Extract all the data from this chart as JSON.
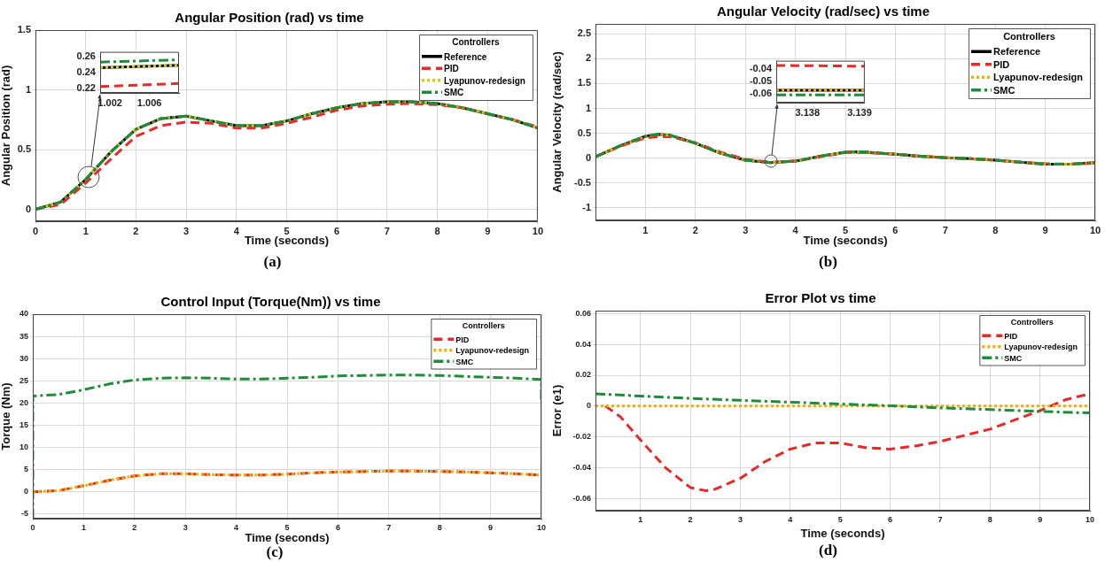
{
  "chart_data": [
    {
      "type": "line",
      "title": "Angular Position (rad) vs time",
      "xlabel": "Time (seconds)",
      "ylabel": "Angular Position (rad)",
      "legend_title": "Controllers",
      "legend": "top right",
      "grid": true,
      "annotations": [
        "(a)"
      ],
      "xlim": [
        0,
        10
      ],
      "xticks": [
        0,
        1,
        2,
        3,
        4,
        5,
        6,
        7,
        8,
        9,
        10
      ],
      "ylim": [
        -0.1,
        1.5
      ],
      "yticks": [
        0,
        0.5,
        1,
        1.5
      ],
      "x": [
        0,
        0.5,
        1,
        1.5,
        2,
        2.5,
        3,
        3.5,
        4,
        4.5,
        5,
        5.5,
        6,
        6.5,
        7,
        7.5,
        8,
        8.5,
        9,
        9.5,
        10
      ],
      "series": [
        {
          "name": "Reference",
          "color": "#000000",
          "line_style": "solid",
          "values": [
            0,
            0.06,
            0.25,
            0.48,
            0.67,
            0.76,
            0.78,
            0.74,
            0.7,
            0.7,
            0.74,
            0.8,
            0.85,
            0.885,
            0.9,
            0.9,
            0.885,
            0.85,
            0.8,
            0.75,
            0.68
          ]
        },
        {
          "name": "PID",
          "color": "#e42a2a",
          "line_style": "dashed",
          "values": [
            0,
            0.04,
            0.22,
            0.42,
            0.61,
            0.7,
            0.73,
            0.72,
            0.68,
            0.68,
            0.72,
            0.77,
            0.83,
            0.865,
            0.88,
            0.885,
            0.875,
            0.85,
            0.8,
            0.75,
            0.69
          ]
        },
        {
          "name": "Lyapunov-redesign",
          "color": "#d4cc10",
          "line_style": "dotted",
          "values": [
            0,
            0.06,
            0.25,
            0.48,
            0.67,
            0.76,
            0.78,
            0.74,
            0.7,
            0.7,
            0.74,
            0.8,
            0.85,
            0.885,
            0.9,
            0.9,
            0.885,
            0.85,
            0.8,
            0.75,
            0.68
          ]
        },
        {
          "name": "SMC",
          "color": "#1f8b3b",
          "line_style": "dashdot",
          "values": [
            0,
            0.06,
            0.25,
            0.48,
            0.67,
            0.76,
            0.78,
            0.74,
            0.7,
            0.7,
            0.74,
            0.8,
            0.85,
            0.885,
            0.9,
            0.9,
            0.885,
            0.85,
            0.8,
            0.75,
            0.68
          ]
        }
      ]
    },
    {
      "type": "line",
      "grid": true,
      "xlim": [
        1.001,
        1.009
      ],
      "xticks": [
        1.002,
        1.006
      ],
      "ylim": [
        0.214,
        0.266
      ],
      "yticks": [
        0.22,
        0.24,
        0.26
      ],
      "x": [
        1.001,
        1.009
      ],
      "series": [
        {
          "color": "#000000",
          "line_style": "solid",
          "values": [
            0.246,
            0.249
          ]
        },
        {
          "color": "#e42a2a",
          "line_style": "dashed",
          "values": [
            0.222,
            0.226
          ]
        },
        {
          "color": "#d4cc10",
          "line_style": "dotted",
          "values": [
            0.246,
            0.249
          ]
        },
        {
          "color": "#1f8b3b",
          "line_style": "dashdot",
          "values": [
            0.253,
            0.256
          ]
        }
      ]
    },
    {
      "type": "line",
      "title": "Angular Velocity (rad/sec) vs time",
      "xlabel": "Time (seconds)",
      "ylabel": "Angular Velocity (rad/sec)",
      "legend_title": "Controllers",
      "legend": "top right",
      "grid": true,
      "annotations": [
        "(b)"
      ],
      "xlim": [
        0,
        10
      ],
      "xticks": [
        1,
        2,
        3,
        4,
        5,
        6,
        7,
        8,
        9,
        10
      ],
      "ylim": [
        -1.25,
        2.7
      ],
      "yticks": [
        -1,
        -0.5,
        0,
        0.5,
        1,
        1.5,
        2,
        2.5
      ],
      "x": [
        0,
        0.5,
        1,
        1.25,
        1.5,
        2,
        2.5,
        3,
        3.5,
        4,
        4.5,
        5,
        5.3,
        6,
        6.5,
        7,
        7.5,
        8,
        8.5,
        9,
        9.5,
        10
      ],
      "series": [
        {
          "name": "Reference",
          "color": "#000000",
          "line_style": "solid",
          "values": [
            0.03,
            0.25,
            0.44,
            0.48,
            0.46,
            0.3,
            0.1,
            -0.04,
            -0.09,
            -0.06,
            0.04,
            0.12,
            0.13,
            0.08,
            0.04,
            0.01,
            -0.01,
            -0.04,
            -0.08,
            -0.12,
            -0.12,
            -0.09
          ]
        },
        {
          "name": "PID",
          "color": "#e42a2a",
          "line_style": "dashed",
          "values": [
            0.03,
            0.24,
            0.41,
            0.43,
            0.43,
            0.31,
            0.12,
            -0.02,
            -0.08,
            -0.06,
            0.03,
            0.11,
            0.12,
            0.08,
            0.04,
            0.01,
            -0.01,
            -0.04,
            -0.08,
            -0.11,
            -0.12,
            -0.1
          ]
        },
        {
          "name": "Lyapunov-redesign",
          "color": "#f0b000",
          "line_style": "dotted",
          "values": [
            0.03,
            0.25,
            0.44,
            0.48,
            0.46,
            0.3,
            0.1,
            -0.04,
            -0.09,
            -0.06,
            0.04,
            0.12,
            0.13,
            0.08,
            0.04,
            0.01,
            -0.01,
            -0.04,
            -0.08,
            -0.12,
            -0.12,
            -0.09
          ]
        },
        {
          "name": "SMC",
          "color": "#1f8b3b",
          "line_style": "dashdot",
          "values": [
            0.03,
            0.25,
            0.44,
            0.48,
            0.46,
            0.3,
            0.1,
            -0.04,
            -0.09,
            -0.06,
            0.04,
            0.12,
            0.13,
            0.08,
            0.04,
            0.01,
            -0.01,
            -0.04,
            -0.08,
            -0.12,
            -0.12,
            -0.09
          ]
        }
      ]
    },
    {
      "type": "line",
      "grid": true,
      "xlim": [
        3.1374,
        3.1391
      ],
      "xticks": [
        3.138,
        3.139
      ],
      "ylim": [
        -0.067,
        -0.033
      ],
      "yticks": [
        -0.06,
        -0.05,
        -0.04
      ],
      "x": [
        3.1374,
        3.1391
      ],
      "series": [
        {
          "color": "#000000",
          "line_style": "solid",
          "values": [
            -0.057,
            -0.057
          ]
        },
        {
          "color": "#e42a2a",
          "line_style": "dashed",
          "values": [
            -0.0368,
            -0.0375
          ]
        },
        {
          "color": "#f0b000",
          "line_style": "dotted",
          "values": [
            -0.057,
            -0.057
          ]
        },
        {
          "color": "#1f8b3b",
          "line_style": "dashdot",
          "values": [
            -0.0608,
            -0.0608
          ]
        }
      ]
    },
    {
      "type": "line",
      "title": "Control Input (Torque(Nm)) vs time",
      "xlabel": "Time (seconds)",
      "ylabel": "Torque (Nm)",
      "legend_title": "Controllers",
      "legend": "top right",
      "grid": true,
      "annotations": [
        "(c)"
      ],
      "xlim": [
        0,
        10
      ],
      "xticks": [
        0,
        1,
        2,
        3,
        4,
        5,
        6,
        7,
        8,
        9,
        10
      ],
      "ylim": [
        -6,
        40
      ],
      "yticks": [
        -5,
        0,
        5,
        10,
        15,
        20,
        25,
        30,
        35,
        40
      ],
      "x": [
        0,
        0.5,
        1,
        1.5,
        2,
        2.5,
        3,
        3.5,
        4,
        4.5,
        5,
        5.5,
        6,
        6.5,
        7,
        7.5,
        8,
        8.5,
        9,
        9.5,
        10
      ],
      "series": [
        {
          "name": "PID",
          "color": "#e42a2a",
          "line_style": "dashed",
          "values": [
            0,
            0.3,
            1.4,
            2.6,
            3.6,
            4.1,
            4.1,
            3.9,
            3.8,
            3.8,
            4,
            4.3,
            4.5,
            4.6,
            4.7,
            4.7,
            4.6,
            4.5,
            4.3,
            4.1,
            3.8
          ]
        },
        {
          "name": "Lyapunov-redesign",
          "color": "#f0b000",
          "line_style": "dotted",
          "values": [
            0,
            0.3,
            1.4,
            2.6,
            3.6,
            4.1,
            4.1,
            3.9,
            3.8,
            3.8,
            4,
            4.3,
            4.5,
            4.6,
            4.7,
            4.7,
            4.6,
            4.5,
            4.3,
            4.1,
            3.8
          ]
        },
        {
          "name": "SMC",
          "color": "#1f8b3b",
          "line_style": "dashdot",
          "x": [
            0,
            0,
            0.5,
            1,
            1.5,
            2,
            2.5,
            3,
            3.5,
            4,
            4.5,
            5,
            5.5,
            6,
            6.5,
            7,
            7.5,
            8,
            8.5,
            9,
            9.5,
            10,
            10
          ],
          "values": [
            -6,
            21.6,
            21.9,
            23,
            24.3,
            25.2,
            25.6,
            25.7,
            25.6,
            25.4,
            25.4,
            25.6,
            25.8,
            26.1,
            26.2,
            26.3,
            26.3,
            26.2,
            26,
            25.8,
            25.6,
            25.3,
            20
          ]
        }
      ]
    },
    {
      "type": "line",
      "title": "Error Plot vs time",
      "xlabel": "Time (seconds)",
      "ylabel": "Error (e1)",
      "legend_title": "Controllers",
      "legend": "top right",
      "grid": true,
      "annotations": [
        "(d)"
      ],
      "xlim": [
        0.1,
        10
      ],
      "xticks": [
        1,
        2,
        3,
        4,
        5,
        6,
        7,
        8,
        9,
        10
      ],
      "ylim": [
        -0.068,
        0.062
      ],
      "yticks": [
        -0.06,
        -0.04,
        -0.02,
        0,
        0.02,
        0.04,
        0.06
      ],
      "x": [
        0.3,
        0.6,
        1,
        1.5,
        2,
        2.3,
        2.5,
        3,
        3.5,
        4,
        4.5,
        5,
        5.5,
        6,
        6.5,
        7,
        7.5,
        8,
        8.5,
        9,
        9.5,
        10
      ],
      "series": [
        {
          "name": "PID",
          "color": "#e42a2a",
          "line_style": "dashed",
          "values": [
            0,
            -0.007,
            -0.022,
            -0.04,
            -0.053,
            -0.055,
            -0.054,
            -0.047,
            -0.036,
            -0.028,
            -0.024,
            -0.024,
            -0.027,
            -0.028,
            -0.026,
            -0.023,
            -0.019,
            -0.015,
            -0.009,
            -0.003,
            0.004,
            0.008
          ]
        },
        {
          "name": "Lyapunov-redesign",
          "color": "#f0b000",
          "line_style": "dotted",
          "x": [
            0.1,
            10
          ],
          "values": [
            0,
            0
          ]
        },
        {
          "name": "SMC",
          "color": "#1f8b3b",
          "line_style": "dashdot",
          "x": [
            0.1,
            1,
            2,
            3,
            4,
            5,
            6,
            7,
            8,
            9,
            10
          ],
          "values": [
            0.008,
            0.0065,
            0.005,
            0.0037,
            0.0025,
            0.0013,
            0.0002,
            -0.0012,
            -0.0023,
            -0.0035,
            -0.0045
          ]
        }
      ]
    }
  ]
}
